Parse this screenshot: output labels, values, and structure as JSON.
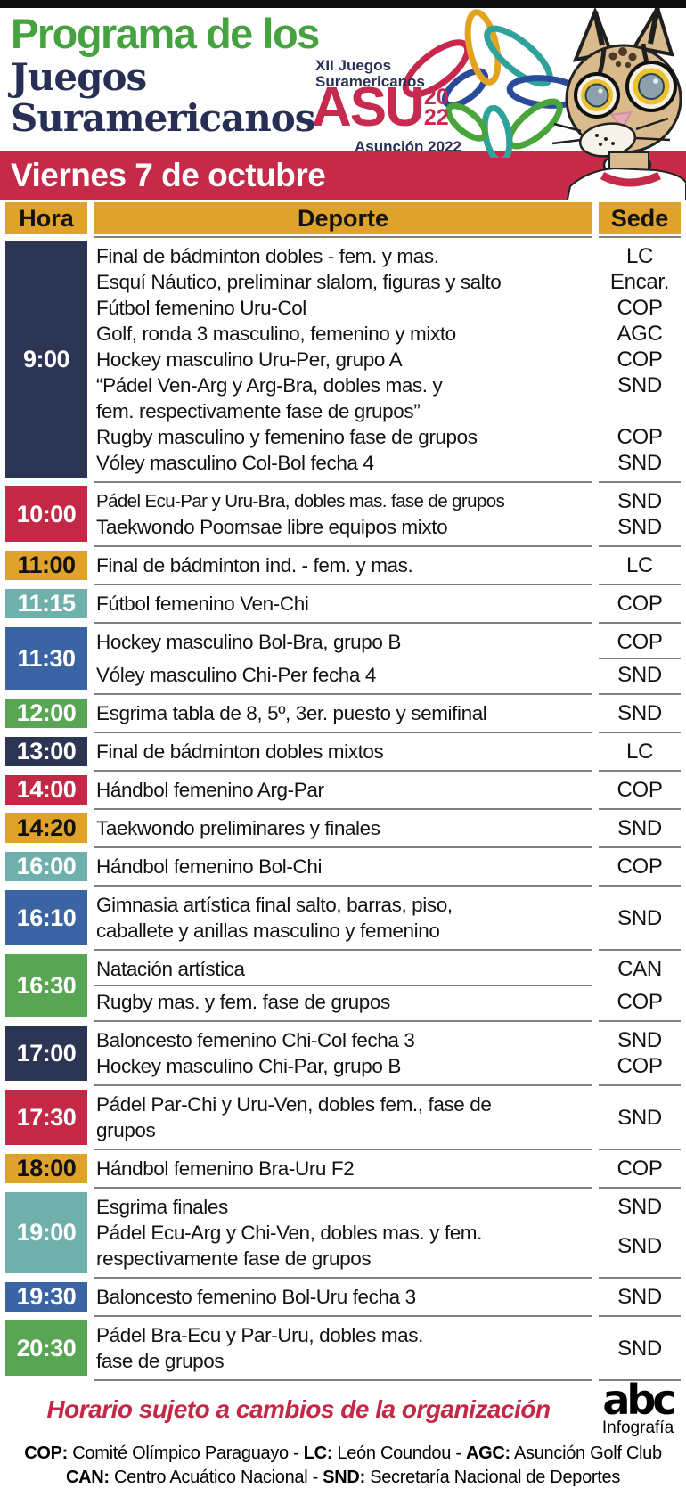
{
  "header": {
    "title_line1": "Programa de los",
    "title_line2": "Juegos",
    "title_line3": "Suramericanos",
    "logo": {
      "event": "XII Juegos\nSuramericanos",
      "asu": "ASU",
      "year_top": "20",
      "year_bottom": "22",
      "city": "Asunción 2022"
    }
  },
  "date_bar": {
    "label": "Viernes 7 de octubre"
  },
  "schedule": {
    "columns": [
      "Hora",
      "Deporte",
      "Sede"
    ],
    "header_color": "#dfa32c",
    "time_colors": {
      "navy": "#2d3554",
      "crimson": "#c32946",
      "gold": "#dfa32c",
      "teal": "#6fb0ad",
      "blue": "#3b64a5",
      "green": "#58a554"
    },
    "rows": [
      {
        "time": "9:00",
        "color": "navy",
        "entries": [
          {
            "sport": "Final de bádminton dobles - fem. y mas.",
            "venue": "LC"
          },
          {
            "sport": "Esquí Náutico, preliminar slalom, figuras y salto",
            "venue": "Encar."
          },
          {
            "sport": "Fútbol femenino Uru-Col",
            "venue": "COP"
          },
          {
            "sport": "Golf, ronda 3 masculino, femenino y mixto",
            "venue": "AGC"
          },
          {
            "sport": "Hockey masculino Uru-Per, grupo A",
            "venue": "COP"
          },
          {
            "sport": "“Pádel Ven-Arg y Arg-Bra, dobles mas. y\nfem. respectivamente fase de grupos”",
            "venue": "SND",
            "venue_align": "top"
          },
          {
            "sport": "Rugby masculino y femenino fase de grupos",
            "venue": "COP"
          },
          {
            "sport": "Vóley masculino Col-Bol fecha 4",
            "venue": "SND"
          }
        ]
      },
      {
        "time": "10:00",
        "color": "crimson",
        "entries": [
          {
            "sport": "Pádel Ecu-Par y Uru-Bra, dobles mas. fase de grupos",
            "venue": "SND",
            "condensed": true
          },
          {
            "sport": "Taekwondo Poomsae libre equipos mixto",
            "venue": "SND"
          }
        ]
      },
      {
        "time": "11:00",
        "color": "gold",
        "entries": [
          {
            "sport": "Final de bádminton ind. - fem. y mas.",
            "venue": "LC"
          }
        ]
      },
      {
        "time": "11:15",
        "color": "teal",
        "entries": [
          {
            "sport": "Fútbol femenino Ven-Chi",
            "venue": "COP"
          }
        ]
      },
      {
        "time": "11:30",
        "color": "blue",
        "entries": [
          {
            "sport": "Hockey masculino Bol-Bra, grupo B",
            "venue": "COP"
          },
          {
            "sport": "Vóley masculino Chi-Per fecha 4",
            "venue": "SND",
            "divider_before": "sede"
          }
        ]
      },
      {
        "time": "12:00",
        "color": "green",
        "entries": [
          {
            "sport": "Esgrima tabla de 8, 5º, 3er. puesto y semifinal",
            "venue": "SND"
          }
        ]
      },
      {
        "time": "13:00",
        "color": "navy",
        "entries": [
          {
            "sport": "Final de bádminton dobles mixtos",
            "venue": "LC"
          }
        ]
      },
      {
        "time": "14:00",
        "color": "crimson",
        "entries": [
          {
            "sport": "Hándbol femenino Arg-Par",
            "venue": "COP"
          }
        ]
      },
      {
        "time": "14:20",
        "color": "gold",
        "entries": [
          {
            "sport": "Taekwondo preliminares y finales",
            "venue": "SND"
          }
        ]
      },
      {
        "time": "16:00",
        "color": "teal",
        "entries": [
          {
            "sport": "Hándbol femenino Bol-Chi",
            "venue": "COP"
          }
        ]
      },
      {
        "time": "16:10",
        "color": "blue",
        "entries": [
          {
            "sport": "Gimnasia artística final salto, barras, piso,\ncaballete y anillas masculino y femenino",
            "venue": "SND"
          }
        ]
      },
      {
        "time": "16:30",
        "color": "green",
        "entries": [
          {
            "sport": "Natación artística",
            "venue": "CAN"
          },
          {
            "sport": "Rugby mas. y fem. fase de grupos",
            "venue": "COP",
            "divider_before": "deporte"
          }
        ]
      },
      {
        "time": "17:00",
        "color": "navy",
        "entries": [
          {
            "sport": "Baloncesto femenino Chi-Col fecha 3",
            "venue": "SND"
          },
          {
            "sport": "Hockey masculino Chi-Par, grupo B",
            "venue": "COP"
          }
        ]
      },
      {
        "time": "17:30",
        "color": "crimson",
        "entries": [
          {
            "sport": "Pádel Par-Chi y Uru-Ven, dobles fem., fase de\ngrupos",
            "venue": "SND"
          }
        ]
      },
      {
        "time": "18:00",
        "color": "gold",
        "entries": [
          {
            "sport": "Hándbol femenino Bra-Uru F2",
            "venue": "COP"
          }
        ]
      },
      {
        "time": "19:00",
        "color": "teal",
        "entries": [
          {
            "sport": "Esgrima finales",
            "venue": "SND"
          },
          {
            "sport": "Pádel Ecu-Arg y Chi-Ven, dobles mas. y fem.\nrespectivamente fase de grupos",
            "venue": "SND"
          }
        ]
      },
      {
        "time": "19:30",
        "color": "blue",
        "entries": [
          {
            "sport": "Baloncesto femenino Bol-Uru fecha 3",
            "venue": "SND"
          }
        ]
      },
      {
        "time": "20:30",
        "color": "green",
        "entries": [
          {
            "sport": "Pádel Bra-Ecu y Par-Uru, dobles mas.\nfase de grupos",
            "venue": "SND"
          }
        ]
      }
    ]
  },
  "footer": {
    "note": "Horario sujeto a cambios de la organización",
    "brand": {
      "logo": "abc",
      "sub": "Infografía"
    },
    "legend_separator": " - ",
    "legend": [
      [
        {
          "abbr": "COP:",
          "name": "Comité Olímpico Paraguayo"
        },
        {
          "abbr": "LC:",
          "name": "León Coundou"
        },
        {
          "abbr": "AGC:",
          "name": "Asunción Golf Club"
        }
      ],
      [
        {
          "abbr": "CAN:",
          "name": "Centro Acuático Nacional"
        },
        {
          "abbr": "SND:",
          "name": "Secretaría Nacional de Deportes"
        }
      ]
    ]
  },
  "palette": {
    "date_bar_red": "#c52a49",
    "title_green": "#44a33e",
    "title_navy": "#272f55",
    "asu_red": "#c62a4e",
    "divider_gray": "#7f7f7f",
    "black_bar": "#0d0d0d"
  }
}
